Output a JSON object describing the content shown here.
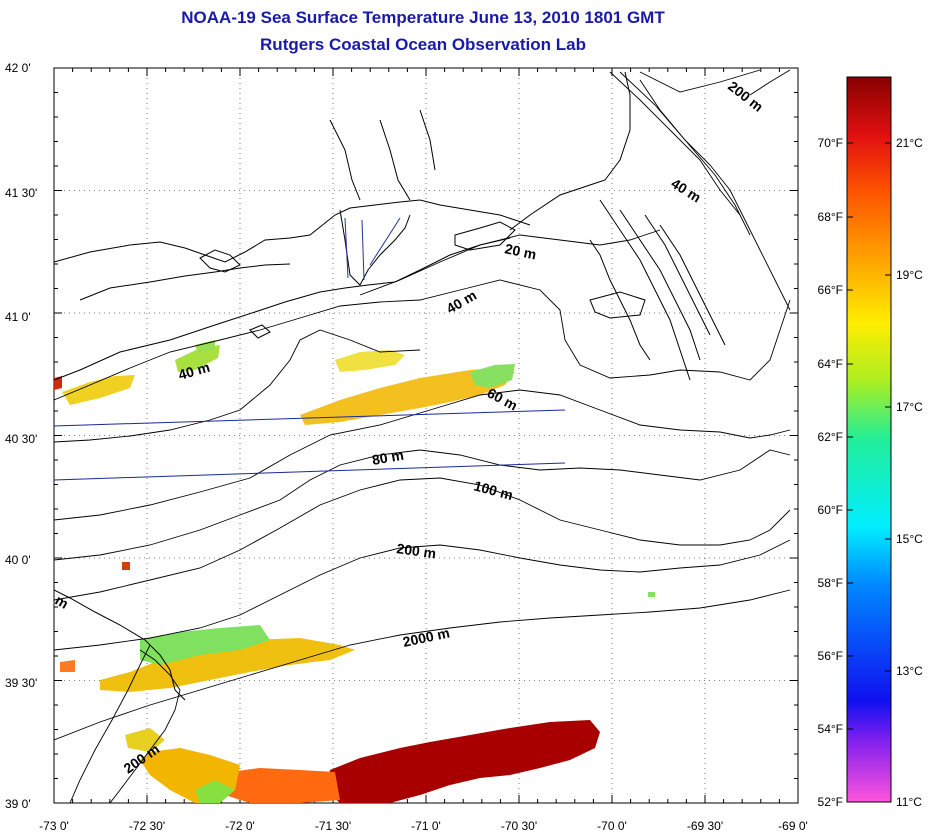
{
  "title": "NOAA-19 Sea Surface Temperature June 13, 2010 1801 GMT",
  "subtitle": "Rutgers Coastal Ocean Observation Lab",
  "map": {
    "lat_range": [
      39.0,
      42.0
    ],
    "lon_range": [
      -73.0,
      -69.0
    ],
    "lat_ticks": [
      "42 0'",
      "41 30'",
      "41 0'",
      "40 30'",
      "40 0'",
      "39 30'",
      "39 0'"
    ],
    "lon_ticks": [
      "-73 0'",
      "-72 30'",
      "-72 0'",
      "-71 30'",
      "-71 0'",
      "-70 30'",
      "-70 0'",
      "-69 30'",
      "-69 0'"
    ],
    "grid": "dotted",
    "contour_labels": [
      "200 m",
      "40 m",
      "20 m",
      "40 m",
      "40 m",
      "60 m",
      "80 m",
      "100 m",
      "200 m",
      "2000 m",
      "200 m",
      "m"
    ]
  },
  "colorbar": {
    "fahrenheit_labels": [
      "70°F",
      "68°F",
      "66°F",
      "64°F",
      "62°F",
      "60°F",
      "58°F",
      "56°F",
      "54°F",
      "52°F"
    ],
    "celsius_labels": [
      "21°C",
      "19°C",
      "17°C",
      "15°C",
      "13°C",
      "11°C"
    ],
    "range_c": [
      11,
      22
    ],
    "colors": [
      "#ff55dd",
      "#8822ee",
      "#1010f0",
      "#0088ff",
      "#00eeff",
      "#22ee99",
      "#aaee22",
      "#ffee00",
      "#ffaa00",
      "#ff5500",
      "#e01010",
      "#880000"
    ]
  }
}
